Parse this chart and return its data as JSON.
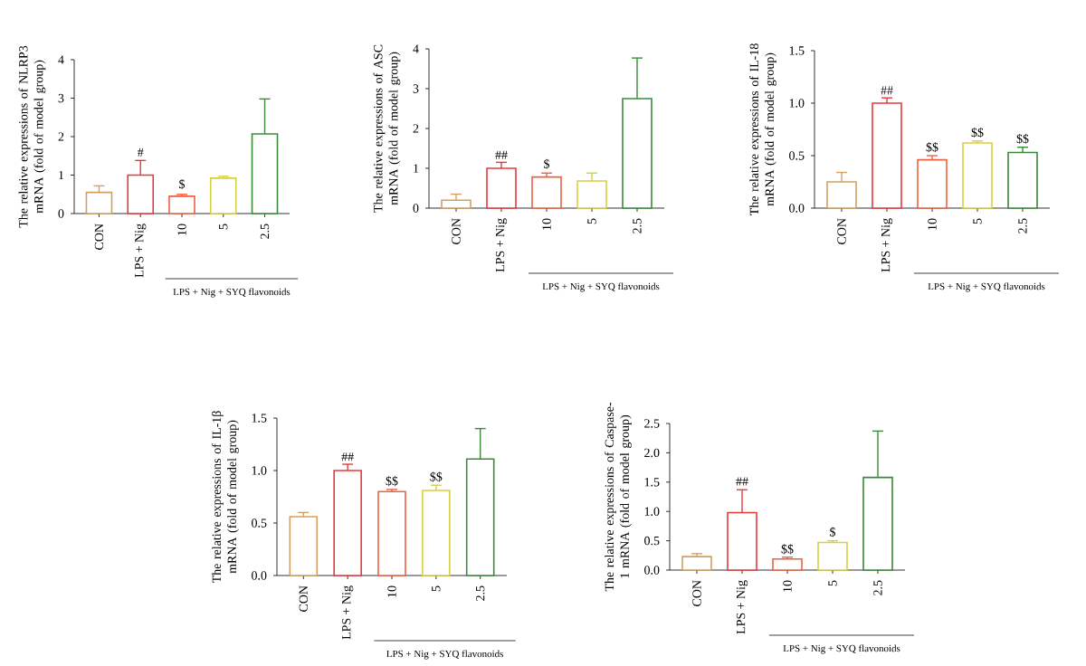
{
  "chart_data": [
    {
      "type": "bar",
      "ylabel": "The relative expressions of NLRP3 mRNA (fold of model group)",
      "categories": [
        "CON",
        "LPS + Nig",
        "10",
        "5",
        "2.5"
      ],
      "values": [
        0.55,
        1.0,
        0.45,
        0.92,
        2.07
      ],
      "errors": [
        [
          0.55,
          0.72
        ],
        [
          1.0,
          1.38
        ],
        [
          0.45,
          0.5
        ],
        [
          0.92,
          0.97
        ],
        [
          2.07,
          2.98
        ]
      ],
      "colors": [
        "#d4a060",
        "#e8383c",
        "#f06040",
        "#d8d040",
        "#3a8a3a"
      ],
      "ylim": [
        0,
        4
      ],
      "yticks": [
        0,
        1,
        2,
        3,
        4
      ],
      "annotations": [
        {
          "text": "#",
          "x": "LPS + Nig",
          "y": 1.45
        },
        {
          "text": "$",
          "x": "10",
          "y": 0.6
        },
        "LPS + Nig + SYQ flavonoids"
      ]
    },
    {
      "type": "bar",
      "ylabel": "The relative expressions of ASC mRNA (fold of model group)",
      "categories": [
        "CON",
        "LPS + Nig",
        "10",
        "5",
        "2.5"
      ],
      "values": [
        0.2,
        1.0,
        0.78,
        0.68,
        2.75
      ],
      "errors": [
        [
          0.2,
          0.35
        ],
        [
          1.0,
          1.15
        ],
        [
          0.78,
          0.88
        ],
        [
          0.68,
          0.88
        ],
        [
          2.75,
          3.77
        ]
      ],
      "colors": [
        "#d4a060",
        "#e8383c",
        "#f06040",
        "#d8d040",
        "#3a8a3a"
      ],
      "ylim": [
        0,
        4
      ],
      "yticks": [
        0,
        1,
        2,
        3,
        4
      ],
      "annotations": [
        {
          "text": "##",
          "x": "LPS + Nig",
          "y": 1.2
        },
        {
          "text": "$",
          "x": "10",
          "y": 0.95
        },
        "LPS + Nig + SYQ flavonoids"
      ]
    },
    {
      "type": "bar",
      "ylabel": "The relative expressions of IL-18 mRNA (fold of model group)",
      "categories": [
        "CON",
        "LPS + Nig",
        "10",
        "5",
        "2.5"
      ],
      "values": [
        0.25,
        1.0,
        0.46,
        0.62,
        0.53
      ],
      "errors": [
        [
          0.25,
          0.34
        ],
        [
          1.0,
          1.05
        ],
        [
          0.46,
          0.5
        ],
        [
          0.62,
          0.64
        ],
        [
          0.53,
          0.58
        ]
      ],
      "colors": [
        "#d4a060",
        "#e8383c",
        "#f06040",
        "#d8d040",
        "#3a8a3a"
      ],
      "ylim": [
        0,
        1.5
      ],
      "yticks": [
        {
          "value": 0,
          "label": "0.0"
        },
        0.5,
        {
          "value": 1,
          "label": "1.0"
        },
        1.5
      ],
      "annotations": [
        {
          "text": "##",
          "x": "LPS + Nig",
          "y": 1.07
        },
        {
          "text": "$$",
          "x": "10",
          "y": 0.52
        },
        {
          "text": "$$",
          "x": "5",
          "y": 0.66
        },
        {
          "text": "$$",
          "x": "2.5",
          "y": 0.6
        },
        "LPS + Nig + SYQ flavonoids"
      ]
    },
    {
      "type": "bar",
      "ylabel": "The relative expressions of IL-1β mRNA (fold of model group)",
      "categories": [
        "CON",
        "LPS + Nig",
        "10",
        "5",
        "2.5"
      ],
      "values": [
        0.56,
        1.0,
        0.8,
        0.81,
        1.11
      ],
      "errors": [
        [
          0.56,
          0.6
        ],
        [
          1.0,
          1.06
        ],
        [
          0.8,
          0.82
        ],
        [
          0.81,
          0.86
        ],
        [
          1.11,
          1.4
        ]
      ],
      "colors": [
        "#d4a060",
        "#e8383c",
        "#f06040",
        "#d8d040",
        "#3a8a3a"
      ],
      "ylim": [
        0,
        1.5
      ],
      "yticks": [
        {
          "value": 0,
          "label": "0.0"
        },
        0.5,
        {
          "value": 1,
          "label": "1.0"
        },
        1.5
      ],
      "annotations": [
        {
          "text": "##",
          "x": "LPS + Nig",
          "y": 1.08
        },
        {
          "text": "$$",
          "x": "10",
          "y": 0.84
        },
        {
          "text": "$$",
          "x": "5",
          "y": 0.88
        },
        "LPS + Nig + SYQ flavonoids"
      ]
    },
    {
      "type": "bar",
      "ylabel": "The relative expressions of Caspase-1 mRNA (fold of model group)",
      "categories": [
        "CON",
        "LPS + Nig",
        "10",
        "5",
        "2.5"
      ],
      "values": [
        0.23,
        0.98,
        0.19,
        0.47,
        1.58
      ],
      "errors": [
        [
          0.23,
          0.28
        ],
        [
          0.98,
          1.37
        ],
        [
          0.19,
          0.22
        ],
        [
          0.47,
          0.5
        ],
        [
          1.58,
          2.37
        ]
      ],
      "colors": [
        "#d4a060",
        "#e8383c",
        "#f06040",
        "#d8d040",
        "#3a8a3a"
      ],
      "ylim": [
        0,
        2.5
      ],
      "yticks": [
        {
          "value": 0,
          "label": "0.0"
        },
        0.5,
        {
          "value": 1,
          "label": "1.0"
        },
        1.5,
        {
          "value": 2,
          "label": "2.0"
        },
        2.5
      ],
      "annotations": [
        {
          "text": "##",
          "x": "LPS + Nig",
          "y": 1.42
        },
        {
          "text": "$$",
          "x": "10",
          "y": 0.25
        },
        {
          "text": "$",
          "x": "5",
          "y": 0.54
        },
        "LPS + Nig + SYQ flavonoids"
      ]
    }
  ]
}
